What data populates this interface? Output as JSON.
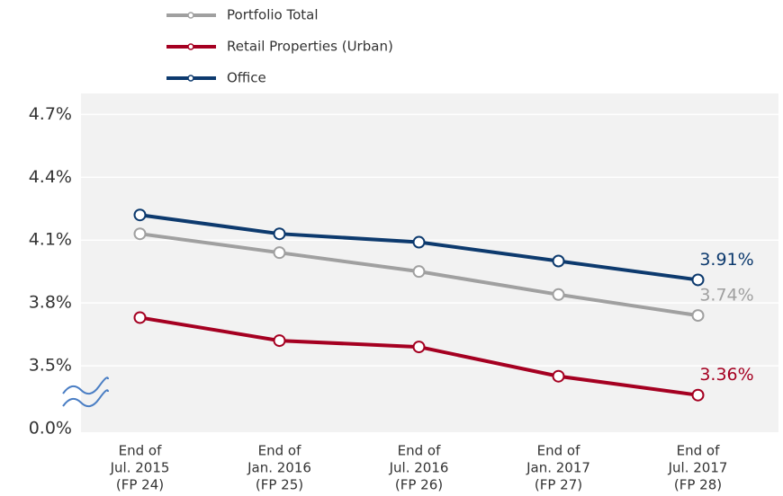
{
  "chart_data": {
    "type": "line",
    "categories": [
      [
        "End of",
        "Jul. 2015",
        "(FP 24)"
      ],
      [
        "End of",
        "Jan. 2016",
        "(FP 25)"
      ],
      [
        "End of",
        "Jul. 2016",
        "(FP 26)"
      ],
      [
        "End of",
        "Jan. 2017",
        "(FP 27)"
      ],
      [
        "End of",
        "Jul. 2017",
        "(FP 28)"
      ]
    ],
    "series": [
      {
        "name": "Portfolio Total",
        "color": "#a0a0a0",
        "values": [
          4.13,
          4.04,
          3.95,
          3.84,
          3.74
        ],
        "value_labels": [
          null,
          null,
          null,
          null,
          "3.74%"
        ]
      },
      {
        "name": "Retail Properties (Urban)",
        "color": "#a50021",
        "values": [
          3.73,
          3.62,
          3.59,
          3.45,
          3.36
        ],
        "value_labels": [
          null,
          null,
          null,
          null,
          "3.36%"
        ]
      },
      {
        "name": "Office",
        "color": "#0d3a6e",
        "values": [
          4.22,
          4.13,
          4.09,
          4.0,
          3.91
        ],
        "value_labels": [
          null,
          null,
          null,
          null,
          "3.91%"
        ]
      }
    ],
    "ylim": [
      0,
      4.8
    ],
    "axis_break": [
      0,
      3.2
    ],
    "yticks": [
      {
        "value": 0,
        "label": "0.0%"
      },
      {
        "value": 3.5,
        "label": "3.5%"
      },
      {
        "value": 3.8,
        "label": "3.8%"
      },
      {
        "value": 4.1,
        "label": "4.1%"
      },
      {
        "value": 4.4,
        "label": "4.4%"
      },
      {
        "value": 4.7,
        "label": "4.7%"
      }
    ],
    "grid": true
  }
}
